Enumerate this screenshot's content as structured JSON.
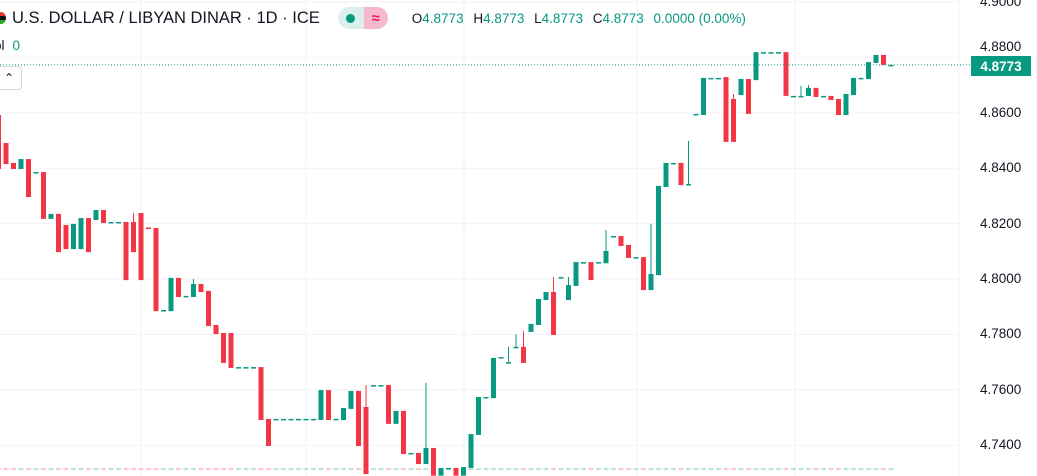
{
  "header": {
    "title": "U.S. DOLLAR / LIBYAN DINAR · 1D · ICE",
    "flag_icon": "libya-flag-icon",
    "status_icons": [
      "market-open-dot-icon",
      "delayed-data-icon"
    ],
    "delayed_glyph": "≈",
    "ohlc": {
      "o_label": "O",
      "o": "4.8773",
      "h_label": "H",
      "h": "4.8773",
      "l_label": "L",
      "l": "4.8773",
      "c_label": "C",
      "c": "4.8773",
      "change": "0.0000 (0.00%)"
    },
    "volume_label": "ol",
    "volume_value": "0",
    "collapse_glyph": "⌃"
  },
  "price_axis": {
    "ticks": [
      "4.9000",
      "4.8800",
      "4.8600",
      "4.8400",
      "4.8200",
      "4.8000",
      "4.7800",
      "4.7600",
      "4.7400"
    ],
    "last_price": "4.8773"
  },
  "colors": {
    "up": "#089981",
    "down": "#F23645",
    "grid": "#f0f3fa",
    "text": "#131722"
  },
  "chart_data": {
    "type": "candlestick",
    "interval": "1D",
    "ylim": [
      4.728,
      4.9
    ],
    "grid": true,
    "last_price": 4.8773,
    "ohlc": [
      [
        4.8592,
        4.8592,
        4.8397,
        4.8397
      ],
      [
        4.8491,
        4.8491,
        4.8415,
        4.8415
      ],
      [
        4.8419,
        4.8419,
        4.8397,
        4.8397
      ],
      [
        4.8397,
        4.8433,
        4.8397,
        4.8433
      ],
      [
        4.8433,
        4.8433,
        4.8296,
        4.8296
      ],
      [
        4.8386,
        4.8386,
        4.8386,
        4.8386
      ],
      [
        4.8386,
        4.8386,
        4.8217,
        4.8217
      ],
      [
        4.8217,
        4.8235,
        4.8217,
        4.8235
      ],
      [
        4.8235,
        4.8235,
        4.8097,
        4.8097
      ],
      [
        4.8195,
        4.8195,
        4.8108,
        4.8108
      ],
      [
        4.8108,
        4.8199,
        4.8108,
        4.8199
      ],
      [
        4.8108,
        4.822,
        4.8108,
        4.822
      ],
      [
        4.822,
        4.822,
        4.8097,
        4.8097
      ],
      [
        4.8213,
        4.8249,
        4.8213,
        4.8249
      ],
      [
        4.8249,
        4.8249,
        4.8202,
        4.8202
      ],
      [
        4.8206,
        4.8206,
        4.8206,
        4.8206
      ],
      [
        4.8206,
        4.8206,
        4.8206,
        4.8206
      ],
      [
        4.8206,
        4.8206,
        4.7996,
        4.7996
      ],
      [
        4.8206,
        4.8238,
        4.8097,
        4.8097
      ],
      [
        4.8238,
        4.8238,
        4.7996,
        4.7996
      ],
      [
        4.8186,
        4.8186,
        4.8184,
        4.8184
      ],
      [
        4.8184,
        4.8184,
        4.7884,
        4.7884
      ],
      [
        4.7888,
        4.7888,
        4.7888,
        4.7888
      ],
      [
        4.7884,
        4.8004,
        4.7884,
        4.8004
      ],
      [
        4.8004,
        4.8004,
        4.7935,
        4.7935
      ],
      [
        4.7939,
        4.7939,
        4.7939,
        4.7939
      ],
      [
        4.7935,
        4.8,
        4.7935,
        4.7982
      ],
      [
        4.7982,
        4.7982,
        4.7953,
        4.7953
      ],
      [
        4.7957,
        4.7957,
        4.783,
        4.783
      ],
      [
        4.7834,
        4.7834,
        4.7801,
        4.7801
      ],
      [
        4.7805,
        4.7805,
        4.7697,
        4.7697
      ],
      [
        4.7805,
        4.7805,
        4.7679,
        4.7679
      ],
      [
        4.7682,
        4.7682,
        4.7682,
        4.7682
      ],
      [
        4.7682,
        4.7682,
        4.7682,
        4.7682
      ],
      [
        4.7682,
        4.7682,
        4.7682,
        4.7682
      ],
      [
        4.7682,
        4.7682,
        4.7491,
        4.7491
      ],
      [
        4.7495,
        4.7495,
        4.7397,
        4.7397
      ],
      [
        4.7495,
        4.7495,
        4.7495,
        4.7495
      ],
      [
        4.7495,
        4.7495,
        4.7495,
        4.7495
      ],
      [
        4.7495,
        4.7495,
        4.7495,
        4.7495
      ],
      [
        4.7495,
        4.7495,
        4.7495,
        4.7495
      ],
      [
        4.7495,
        4.7495,
        4.7495,
        4.7495
      ],
      [
        4.7495,
        4.7495,
        4.7495,
        4.7495
      ],
      [
        4.7491,
        4.7599,
        4.7491,
        4.7599
      ],
      [
        4.7599,
        4.7599,
        4.7491,
        4.7491
      ],
      [
        4.7495,
        4.7495,
        4.7495,
        4.7495
      ],
      [
        4.7491,
        4.7534,
        4.7491,
        4.7534
      ],
      [
        4.7531,
        4.7596,
        4.7531,
        4.7596
      ],
      [
        4.7596,
        4.7596,
        4.7397,
        4.7397
      ],
      [
        4.7538,
        4.7617,
        4.7296,
        4.7296
      ],
      [
        4.7617,
        4.7617,
        4.7617,
        4.7617
      ],
      [
        4.7617,
        4.7617,
        4.7617,
        4.7617
      ],
      [
        4.7617,
        4.7617,
        4.7477,
        4.7477
      ],
      [
        4.7477,
        4.7524,
        4.7477,
        4.7524
      ],
      [
        4.7524,
        4.7524,
        4.7368,
        4.7368
      ],
      [
        4.7372,
        4.7372,
        4.7372,
        4.7372
      ],
      [
        4.7372,
        4.7372,
        4.7332,
        4.7332
      ],
      [
        4.7332,
        4.7625,
        4.7332,
        4.739
      ],
      [
        4.739,
        4.739,
        4.729,
        4.729
      ],
      [
        4.729,
        4.7318,
        4.729,
        4.7318
      ],
      [
        4.7318,
        4.7318,
        4.7318,
        4.7318
      ],
      [
        4.7318,
        4.7318,
        4.729,
        4.729
      ],
      [
        4.729,
        4.7321,
        4.729,
        4.7321
      ],
      [
        4.7318,
        4.744,
        4.7318,
        4.744
      ],
      [
        4.7437,
        4.7574,
        4.7437,
        4.7574
      ],
      [
        4.7574,
        4.7574,
        4.7574,
        4.7574
      ],
      [
        4.757,
        4.7715,
        4.757,
        4.7715
      ],
      [
        4.7718,
        4.7718,
        4.7718,
        4.7718
      ],
      [
        4.77,
        4.7755,
        4.77,
        4.77
      ],
      [
        4.7755,
        4.7801,
        4.7755,
        4.7755
      ],
      [
        4.7755,
        4.7812,
        4.7697,
        4.7697
      ],
      [
        4.7809,
        4.7838,
        4.7809,
        4.7838
      ],
      [
        4.7834,
        4.7928,
        4.7834,
        4.7928
      ],
      [
        4.7924,
        4.7953,
        4.7924,
        4.7953
      ],
      [
        4.7953,
        4.8007,
        4.7798,
        4.7798
      ],
      [
        4.8007,
        4.8007,
        4.8007,
        4.8007
      ],
      [
        4.7924,
        4.8007,
        4.7924,
        4.7978
      ],
      [
        4.7975,
        4.8061,
        4.7975,
        4.8061
      ],
      [
        4.8061,
        4.8061,
        4.8061,
        4.8061
      ],
      [
        4.8061,
        4.8061,
        4.7996,
        4.7996
      ],
      [
        4.8061,
        4.8061,
        4.8061,
        4.8061
      ],
      [
        4.8057,
        4.8177,
        4.8057,
        4.8101
      ],
      [
        4.8155,
        4.8155,
        4.8155,
        4.8155
      ],
      [
        4.8155,
        4.8155,
        4.8119,
        4.8119
      ],
      [
        4.8123,
        4.8123,
        4.8076,
        4.8076
      ],
      [
        4.8079,
        4.8079,
        4.8079,
        4.8079
      ],
      [
        4.8079,
        4.8079,
        4.796,
        4.796
      ],
      [
        4.796,
        4.8199,
        4.796,
        4.8018
      ],
      [
        4.8014,
        4.8336,
        4.8014,
        4.8336
      ],
      [
        4.8332,
        4.8419,
        4.8332,
        4.8419
      ],
      [
        4.8419,
        4.8419,
        4.8419,
        4.8419
      ],
      [
        4.8419,
        4.8419,
        4.8339,
        4.8339
      ],
      [
        4.8343,
        4.8498,
        4.8343,
        4.8343
      ],
      [
        4.8596,
        4.8596,
        4.8596,
        4.8596
      ],
      [
        4.8592,
        4.8726,
        4.8592,
        4.8726
      ],
      [
        4.8726,
        4.8726,
        4.8726,
        4.8726
      ],
      [
        4.8726,
        4.8726,
        4.8726,
        4.8726
      ],
      [
        4.8729,
        4.8729,
        4.8495,
        4.8495
      ],
      [
        4.865,
        4.8668,
        4.8495,
        4.8495
      ],
      [
        4.8664,
        4.8722,
        4.8664,
        4.8722
      ],
      [
        4.8722,
        4.8722,
        4.8596,
        4.8596
      ],
      [
        4.8718,
        4.8819,
        4.8718,
        4.8819
      ],
      [
        4.8819,
        4.8819,
        4.8819,
        4.8819
      ],
      [
        4.8819,
        4.8819,
        4.8819,
        4.8819
      ],
      [
        4.8819,
        4.8819,
        4.8819,
        4.8819
      ],
      [
        4.8819,
        4.8819,
        4.8661,
        4.8661
      ],
      [
        4.8661,
        4.8661,
        4.8661,
        4.8661
      ],
      [
        4.8661,
        4.8697,
        4.8661,
        4.8661
      ],
      [
        4.8661,
        4.87,
        4.8661,
        4.869
      ],
      [
        4.869,
        4.869,
        4.8657,
        4.8657
      ],
      [
        4.8661,
        4.8661,
        4.8661,
        4.8661
      ],
      [
        4.8661,
        4.8661,
        4.8646,
        4.8646
      ],
      [
        4.865,
        4.865,
        4.8592,
        4.8592
      ],
      [
        4.8592,
        4.8668,
        4.8592,
        4.8668
      ],
      [
        4.8664,
        4.8726,
        4.8664,
        4.8726
      ],
      [
        4.8726,
        4.8726,
        4.8726,
        4.8726
      ],
      [
        4.8722,
        4.8783,
        4.8722,
        4.8783
      ],
      [
        4.878,
        4.8809,
        4.878,
        4.8809
      ],
      [
        4.8809,
        4.8809,
        4.8773,
        4.8773
      ],
      [
        4.8773,
        4.8773,
        4.8773,
        4.8773
      ]
    ],
    "volume": 0
  }
}
